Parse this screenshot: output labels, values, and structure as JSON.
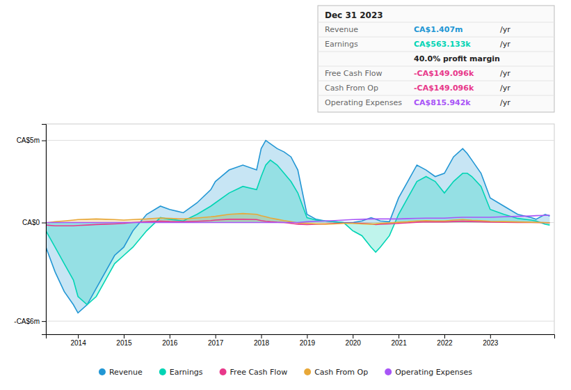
{
  "chart_data": {
    "type": "line",
    "x": [
      2013.3,
      2013.5,
      2013.7,
      2013.9,
      2014.0,
      2014.2,
      2014.4,
      2014.6,
      2014.8,
      2015.0,
      2015.2,
      2015.5,
      2015.8,
      2016.0,
      2016.3,
      2016.6,
      2016.9,
      2017.0,
      2017.3,
      2017.6,
      2017.9,
      2018.0,
      2018.1,
      2018.2,
      2018.35,
      2018.5,
      2018.65,
      2018.8,
      2019.0,
      2019.2,
      2019.4,
      2019.6,
      2019.8,
      2020.0,
      2020.2,
      2020.4,
      2020.5,
      2020.6,
      2020.8,
      2021.0,
      2021.2,
      2021.4,
      2021.6,
      2021.8,
      2022.0,
      2022.2,
      2022.4,
      2022.5,
      2022.6,
      2022.8,
      2023.0,
      2023.3,
      2023.6,
      2023.9,
      2024.0,
      2024.2,
      2024.3
    ],
    "series": [
      {
        "name": "Revenue",
        "type": "area",
        "color": "#2196d4",
        "values": [
          -1.5,
          -3.0,
          -4.2,
          -5.0,
          -5.5,
          -5.0,
          -4.0,
          -3.0,
          -2.0,
          -1.5,
          -0.5,
          0.5,
          1.0,
          0.8,
          0.6,
          1.2,
          2.0,
          2.5,
          3.2,
          3.5,
          3.2,
          4.5,
          5.0,
          4.8,
          4.5,
          4.3,
          4.0,
          3.2,
          0.5,
          0.2,
          0.1,
          0.05,
          0.0,
          0.0,
          0.1,
          0.3,
          0.2,
          0.1,
          0.05,
          1.5,
          2.5,
          3.5,
          3.2,
          2.8,
          3.0,
          4.0,
          4.5,
          4.2,
          3.8,
          3.0,
          1.5,
          1.0,
          0.5,
          0.3,
          0.2,
          0.5,
          0.4
        ]
      },
      {
        "name": "Earnings",
        "type": "area",
        "color": "#00d4b4",
        "values": [
          -0.5,
          -1.5,
          -2.5,
          -3.5,
          -4.5,
          -5.0,
          -4.5,
          -3.5,
          -2.5,
          -2.0,
          -1.5,
          -0.5,
          0.3,
          0.2,
          0.1,
          0.5,
          1.0,
          1.2,
          1.8,
          2.2,
          2.0,
          2.8,
          3.5,
          3.8,
          3.5,
          3.0,
          2.5,
          1.8,
          0.3,
          0.15,
          0.1,
          0.05,
          0.0,
          -0.5,
          -0.8,
          -1.5,
          -1.8,
          -1.5,
          -0.8,
          0.5,
          1.5,
          2.5,
          2.8,
          2.5,
          1.8,
          2.5,
          3.0,
          3.0,
          2.8,
          2.2,
          0.8,
          0.5,
          0.25,
          0.15,
          0.1,
          -0.1,
          -0.15
        ]
      },
      {
        "name": "Free Cash Flow",
        "type": "line",
        "color": "#e8388a",
        "values": [
          -0.15,
          -0.2,
          -0.2,
          -0.2,
          -0.18,
          -0.15,
          -0.12,
          -0.1,
          -0.08,
          -0.05,
          0.0,
          0.05,
          0.08,
          0.06,
          0.05,
          0.08,
          0.12,
          0.15,
          0.2,
          0.2,
          0.18,
          0.12,
          0.08,
          0.05,
          0.02,
          0.0,
          -0.05,
          -0.1,
          -0.12,
          -0.1,
          -0.08,
          -0.05,
          -0.03,
          -0.03,
          -0.05,
          -0.08,
          -0.12,
          -0.1,
          -0.08,
          -0.05,
          -0.02,
          0.02,
          0.05,
          0.04,
          0.04,
          0.06,
          0.08,
          0.07,
          0.06,
          0.05,
          0.03,
          0.02,
          0.01,
          0.005,
          0.003,
          -0.01,
          -0.015
        ]
      },
      {
        "name": "Cash From Op",
        "type": "area",
        "color": "#e8a838",
        "values": [
          -0.02,
          0.05,
          0.1,
          0.15,
          0.18,
          0.2,
          0.22,
          0.2,
          0.18,
          0.15,
          0.18,
          0.22,
          0.28,
          0.25,
          0.22,
          0.28,
          0.35,
          0.38,
          0.5,
          0.55,
          0.5,
          0.42,
          0.35,
          0.28,
          0.2,
          0.12,
          0.05,
          -0.02,
          -0.05,
          -0.08,
          -0.1,
          -0.08,
          -0.05,
          -0.05,
          -0.08,
          -0.1,
          -0.08,
          -0.05,
          -0.02,
          0.02,
          0.05,
          0.1,
          0.12,
          0.1,
          0.1,
          0.15,
          0.18,
          0.16,
          0.14,
          0.12,
          0.08,
          0.06,
          0.04,
          0.02,
          0.01,
          0.0,
          -0.01
        ]
      },
      {
        "name": "Operating Expenses",
        "type": "line",
        "color": "#a855f7",
        "values": [
          0.0,
          0.0,
          0.0,
          0.0,
          0.0,
          0.0,
          0.0,
          0.0,
          0.0,
          0.0,
          0.0,
          0.0,
          0.0,
          0.0,
          0.0,
          0.0,
          0.0,
          0.0,
          0.0,
          0.0,
          0.0,
          0.0,
          0.0,
          0.0,
          0.0,
          0.0,
          0.0,
          0.0,
          0.05,
          0.08,
          0.1,
          0.12,
          0.15,
          0.18,
          0.2,
          0.22,
          0.22,
          0.22,
          0.22,
          0.22,
          0.24,
          0.26,
          0.27,
          0.27,
          0.27,
          0.3,
          0.32,
          0.32,
          0.32,
          0.32,
          0.32,
          0.35,
          0.38,
          0.4,
          0.42,
          0.44,
          0.45
        ]
      }
    ],
    "xlim": [
      2013.3,
      2024.4
    ],
    "xticks": [
      2014,
      2015,
      2016,
      2017,
      2018,
      2019,
      2020,
      2021,
      2022,
      2023
    ],
    "ylim": [
      -6.8,
      6.0
    ],
    "yticks": [
      {
        "value": 5,
        "label": "CA$5m"
      },
      {
        "value": 0,
        "label": "CA$0"
      },
      {
        "value": -6,
        "label": "-CA$6m"
      }
    ],
    "grid": true,
    "legend": "bottom",
    "annotations": [
      {
        "text": "Dec 31 2023"
      },
      {
        "label": "Revenue",
        "text": "CA$1.407m",
        "unit": "/yr",
        "color": "#2196d4"
      },
      {
        "label": "Earnings",
        "text": "CA$563.133k",
        "unit": "/yr",
        "color": "#00d4b4"
      },
      {
        "text": "40.0% profit margin"
      },
      {
        "label": "Free Cash Flow",
        "text": "-CA$149.096k",
        "unit": "/yr",
        "color": "#e8388a"
      },
      {
        "label": "Cash From Op",
        "text": "-CA$149.096k",
        "unit": "/yr",
        "color": "#e8388a"
      },
      {
        "label": "Operating Expenses",
        "text": "CA$815.942k",
        "unit": "/yr",
        "color": "#a855f7"
      }
    ]
  }
}
